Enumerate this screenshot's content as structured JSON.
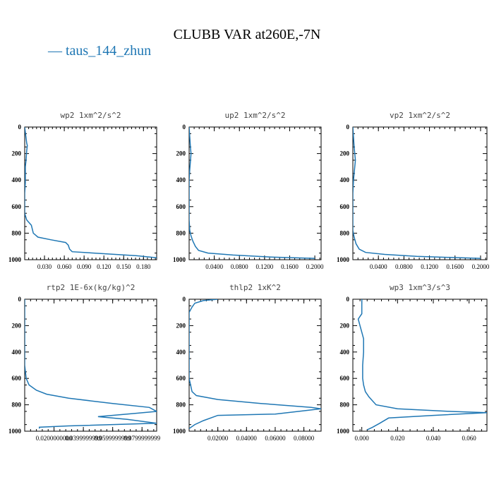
{
  "figure": {
    "title": "CLUBB VAR at260E,-7N",
    "legend": [
      {
        "label": "taus_144_zhun",
        "color": "#1f77b4"
      }
    ]
  },
  "chart_data": [
    {
      "type": "line",
      "title": "wp2  1xm^2/s^2",
      "xlim": [
        0,
        0.2
      ],
      "ylim": [
        1000,
        0
      ],
      "xticks": [
        0.03,
        0.06,
        0.09,
        0.12,
        0.15,
        0.18
      ],
      "xticklabels": [
        "0.030",
        "0.060",
        "0.090",
        "0.120",
        "0.150",
        "0.180"
      ],
      "yticks": [
        0,
        200,
        400,
        600,
        800,
        1000
      ],
      "yticklabels": [
        "0",
        "200",
        "400",
        "600",
        "800",
        "1000"
      ],
      "series": [
        {
          "name": "taus_144_zhun",
          "color": "#1f77b4",
          "x": [
            0.0,
            0.003,
            0.004,
            0.003,
            0.002,
            0.001,
            0.001,
            0.001,
            0.0,
            0.0,
            0.0,
            0.003,
            0.01,
            0.013,
            0.02,
            0.04,
            0.062,
            0.066,
            0.068,
            0.072,
            0.12,
            0.17,
            0.2
          ],
          "y": [
            0,
            120,
            140,
            180,
            250,
            300,
            360,
            420,
            500,
            600,
            650,
            700,
            740,
            800,
            830,
            850,
            870,
            890,
            920,
            940,
            955,
            970,
            985
          ]
        }
      ]
    },
    {
      "type": "line",
      "title": "up2  1xm^2/s^2",
      "xlim": [
        0,
        0.21
      ],
      "ylim": [
        1000,
        0
      ],
      "xticks": [
        0.04,
        0.08,
        0.12,
        0.16,
        0.2
      ],
      "xticklabels": [
        "0.0400",
        "0.0800",
        "0.1200",
        "0.1600",
        "0.2000"
      ],
      "yticks": [
        0,
        200,
        400,
        600,
        800,
        1000
      ],
      "yticklabels": [
        "0",
        "200",
        "400",
        "600",
        "800",
        "1000"
      ],
      "series": [
        {
          "name": "taus_144_zhun",
          "color": "#1f77b4",
          "x": [
            0.0,
            0.002,
            0.003,
            0.002,
            0.001,
            0.0,
            0.0,
            0.0,
            0.001,
            0.003,
            0.006,
            0.01,
            0.015,
            0.03,
            0.07,
            0.13,
            0.2
          ],
          "y": [
            0,
            150,
            200,
            260,
            320,
            400,
            500,
            700,
            780,
            820,
            860,
            900,
            930,
            950,
            965,
            980,
            990
          ]
        }
      ]
    },
    {
      "type": "line",
      "title": "vp2  1xm^2/s^2",
      "xlim": [
        0,
        0.21
      ],
      "ylim": [
        1000,
        0
      ],
      "xticks": [
        0.04,
        0.08,
        0.12,
        0.16,
        0.2
      ],
      "xticklabels": [
        "0.0400",
        "0.0800",
        "0.1200",
        "0.1600",
        "0.2000"
      ],
      "yticks": [
        0,
        200,
        400,
        600,
        800,
        1000
      ],
      "yticklabels": [
        "0",
        "200",
        "400",
        "600",
        "800",
        "1000"
      ],
      "series": [
        {
          "name": "taus_144_zhun",
          "color": "#1f77b4",
          "x": [
            0.0,
            0.002,
            0.004,
            0.003,
            0.002,
            0.001,
            0.0,
            0.0,
            0.0,
            0.002,
            0.005,
            0.01,
            0.02,
            0.05,
            0.1,
            0.2
          ],
          "y": [
            0,
            150,
            250,
            300,
            350,
            400,
            500,
            700,
            780,
            830,
            880,
            920,
            945,
            960,
            975,
            990
          ]
        }
      ]
    },
    {
      "type": "line",
      "title": "rtp2  1E-6x(kg/kg)^2",
      "xlim": [
        0,
        0.09
      ],
      "ylim": [
        1000,
        0
      ],
      "xticks": [
        0.02,
        0.04,
        0.06,
        0.08
      ],
      "xticklabels": [
        "0.0200000000",
        "0.0399999999",
        "0.0599999999",
        "0.0799999999"
      ],
      "yticks": [
        0,
        200,
        400,
        600,
        800,
        1000
      ],
      "yticklabels": [
        "0",
        "200",
        "400",
        "600",
        "800",
        "1000"
      ],
      "series": [
        {
          "name": "taus_144_zhun",
          "color": "#1f77b4",
          "x": [
            0.0,
            0.0,
            0.001,
            0.003,
            0.008,
            0.015,
            0.03,
            0.06,
            0.085,
            0.09,
            0.07,
            0.05,
            0.07,
            0.09,
            0.03,
            0.01,
            0.01
          ],
          "y": [
            0,
            500,
            600,
            650,
            690,
            720,
            750,
            790,
            820,
            850,
            870,
            890,
            910,
            940,
            960,
            970,
            980
          ]
        }
      ]
    },
    {
      "type": "line",
      "title": "thlp2  1xK^2",
      "xlim": [
        0,
        0.092
      ],
      "ylim": [
        1000,
        0
      ],
      "xticks": [
        0.02,
        0.04,
        0.06,
        0.08
      ],
      "xticklabels": [
        "0.02000",
        "0.04000",
        "0.06000",
        "0.08000"
      ],
      "yticks": [
        0,
        200,
        400,
        600,
        800,
        1000
      ],
      "yticklabels": [
        "0",
        "200",
        "400",
        "600",
        "800",
        "1000"
      ],
      "series": [
        {
          "name": "taus_144_zhun",
          "color": "#1f77b4",
          "x": [
            0.02,
            0.01,
            0.004,
            0.002,
            0.0,
            0.0,
            0.0,
            0.0,
            0.002,
            0.005,
            0.02,
            0.05,
            0.085,
            0.092,
            0.06,
            0.02,
            0.01,
            0.004,
            0.0
          ],
          "y": [
            0,
            10,
            30,
            60,
            100,
            200,
            400,
            600,
            700,
            730,
            760,
            790,
            820,
            830,
            870,
            880,
            920,
            950,
            980
          ]
        }
      ]
    },
    {
      "type": "line",
      "title": "wp3  1xm^3/s^3",
      "xlim": [
        -0.005,
        0.07
      ],
      "ylim": [
        1000,
        0
      ],
      "xticks": [
        0.0,
        0.02,
        0.04,
        0.06
      ],
      "xticklabels": [
        "0.000",
        "0.020",
        "0.040",
        "0.060"
      ],
      "yticks": [
        0,
        200,
        400,
        600,
        800,
        1000
      ],
      "yticklabels": [
        "0",
        "200",
        "400",
        "600",
        "800",
        "1000"
      ],
      "series": [
        {
          "name": "taus_144_zhun",
          "color": "#1f77b4",
          "x": [
            0.0,
            0.0,
            0.0,
            -0.002,
            -0.001,
            0.0,
            0.001,
            0.001,
            0.0005,
            0.0005,
            0.001,
            0.002,
            0.004,
            0.008,
            0.02,
            0.05,
            0.07,
            0.04,
            0.015,
            0.01,
            0.006,
            0.003
          ],
          "y": [
            0,
            100,
            110,
            150,
            200,
            250,
            300,
            400,
            500,
            600,
            650,
            700,
            740,
            800,
            830,
            850,
            860,
            880,
            900,
            940,
            970,
            990
          ]
        }
      ]
    }
  ]
}
